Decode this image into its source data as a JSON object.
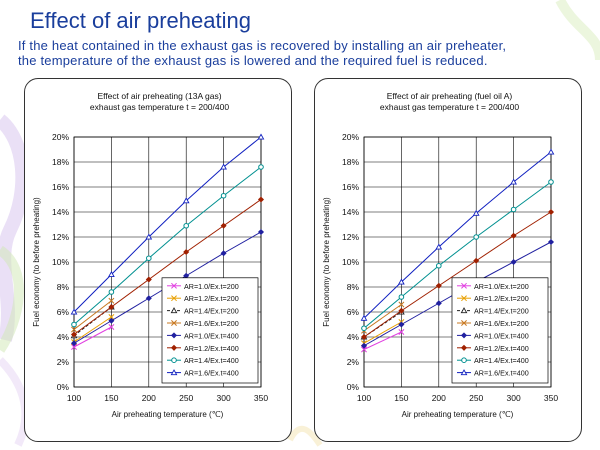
{
  "slide": {
    "title": "Effect of air preheating",
    "subtitle_line1": "If the heat contained in the exhaust gas is recovered by installing  an air preheater,",
    "subtitle_line2": "the temperature of the exhaust gas is lowered and the required fuel is reduced."
  },
  "chart_data": [
    {
      "type": "line",
      "title": "Effect of air preheating (13A gas)",
      "subtitle": "exhaust gas temperature t = 200/400",
      "xlabel": "Air preheating temperature (℃)",
      "ylabel": "Fuel economy (to before preheating)",
      "x": [
        100,
        150,
        200,
        250,
        300,
        350
      ],
      "xlim": [
        100,
        350
      ],
      "ylim": [
        0,
        20
      ],
      "y_unit": "%",
      "xticks": [
        "100",
        "150",
        "200",
        "250",
        "300",
        "350"
      ],
      "yticks": [
        "0%",
        "2%",
        "4%",
        "6%",
        "8%",
        "10%",
        "12%",
        "14%",
        "16%",
        "18%",
        "20%"
      ],
      "grid": true,
      "legend_position": "bottom-right",
      "series": [
        {
          "name": "AR=1.0/Ex.t=200",
          "color": "#e040e0",
          "marker": "x",
          "dash": "",
          "x": [
            100,
            150
          ],
          "values": [
            3.2,
            4.8
          ]
        },
        {
          "name": "AR=1.2/Ex.t=200",
          "color": "#e8a000",
          "marker": "x",
          "dash": "",
          "x": [
            100,
            150
          ],
          "values": [
            3.6,
            5.6
          ]
        },
        {
          "name": "AR=1.4/Ex.t=200",
          "color": "#222222",
          "marker": "triangle",
          "dash": "3,2",
          "x": [
            100,
            150
          ],
          "values": [
            4.1,
            6.4
          ]
        },
        {
          "name": "AR=1.6/Ex.t=200",
          "color": "#c87820",
          "marker": "x",
          "dash": "",
          "x": [
            100,
            150
          ],
          "values": [
            4.6,
            6.9
          ]
        },
        {
          "name": "AR=1.0/Ex.t=400",
          "color": "#2020a0",
          "marker": "diamond",
          "dash": "",
          "values": [
            3.5,
            5.3,
            7.1,
            8.9,
            10.7,
            12.4
          ]
        },
        {
          "name": "AR=1.2/Ex.t=400",
          "color": "#a02000",
          "marker": "diamond",
          "dash": "",
          "values": [
            4.2,
            6.4,
            8.6,
            10.8,
            12.9,
            15.0
          ]
        },
        {
          "name": "AR=1.4/Ex.t=400",
          "color": "#009090",
          "marker": "circle",
          "dash": "",
          "values": [
            5.0,
            7.6,
            10.3,
            12.9,
            15.3,
            17.6
          ]
        },
        {
          "name": "AR=1.6/Ex.t=400",
          "color": "#1020c0",
          "marker": "triangle",
          "dash": "",
          "values": [
            6.0,
            9.0,
            12.0,
            14.9,
            17.6,
            20.0
          ]
        }
      ]
    },
    {
      "type": "line",
      "title": "Effect of air preheating (fuel oil A)",
      "subtitle": "exhaust gas temperature t = 200/400",
      "xlabel": "Air preheating temperature (℃)",
      "ylabel": "Fuel economy (to before preheating)",
      "x": [
        100,
        150,
        200,
        250,
        300,
        350
      ],
      "xlim": [
        100,
        350
      ],
      "ylim": [
        0,
        20
      ],
      "y_unit": "%",
      "xticks": [
        "100",
        "150",
        "200",
        "250",
        "300",
        "350"
      ],
      "yticks": [
        "0%",
        "2%",
        "4%",
        "6%",
        "8%",
        "10%",
        "12%",
        "14%",
        "16%",
        "18%",
        "20%"
      ],
      "grid": true,
      "legend_position": "bottom-right",
      "series": [
        {
          "name": "AR=1.0/Ex.t=200",
          "color": "#e040e0",
          "marker": "x",
          "dash": "",
          "x": [
            100,
            150
          ],
          "values": [
            3.0,
            4.4
          ]
        },
        {
          "name": "AR=1.2/Ex.t=200",
          "color": "#e8a000",
          "marker": "x",
          "dash": "",
          "x": [
            100,
            150
          ],
          "values": [
            3.5,
            5.2
          ]
        },
        {
          "name": "AR=1.4/Ex.t=200",
          "color": "#222222",
          "marker": "triangle",
          "dash": "3,2",
          "x": [
            100,
            150
          ],
          "values": [
            4.0,
            6.0
          ]
        },
        {
          "name": "AR=1.6/Ex.t=200",
          "color": "#c87820",
          "marker": "x",
          "dash": "",
          "x": [
            100,
            150
          ],
          "values": [
            4.5,
            6.6
          ]
        },
        {
          "name": "AR=1.0/Ex.t=400",
          "color": "#2020a0",
          "marker": "diamond",
          "dash": "",
          "values": [
            3.3,
            5.0,
            6.7,
            8.4,
            10.0,
            11.6
          ]
        },
        {
          "name": "AR=1.2/Ex.t=400",
          "color": "#a02000",
          "marker": "diamond",
          "dash": "",
          "values": [
            4.0,
            6.1,
            8.1,
            10.1,
            12.1,
            14.0
          ]
        },
        {
          "name": "AR=1.4/Ex.t=400",
          "color": "#009090",
          "marker": "circle",
          "dash": "",
          "values": [
            4.7,
            7.2,
            9.7,
            12.0,
            14.2,
            16.4
          ]
        },
        {
          "name": "AR=1.6/Ex.t=400",
          "color": "#1020c0",
          "marker": "triangle",
          "dash": "",
          "values": [
            5.5,
            8.4,
            11.2,
            13.9,
            16.4,
            18.8
          ]
        }
      ]
    }
  ]
}
